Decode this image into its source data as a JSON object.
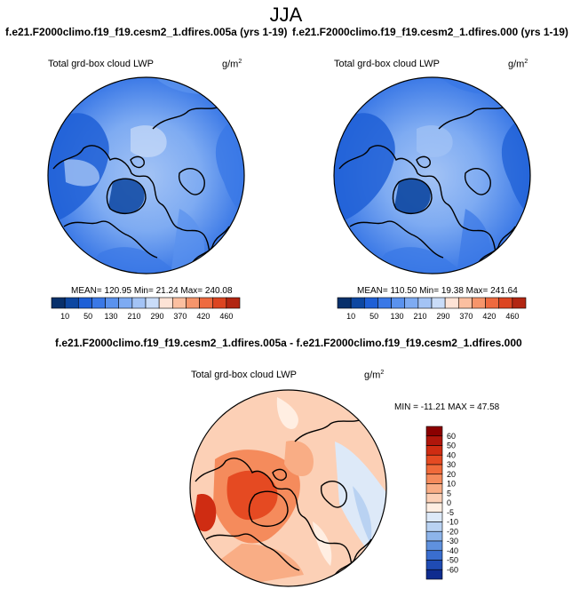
{
  "page": {
    "season_title": "JJA"
  },
  "panels": [
    {
      "title": "f.e21.F2000climo.f19_f19.cesm2_1.dfires.005a (yrs 1-19)",
      "variable": "Total grd-box cloud LWP",
      "units": "g/m",
      "units_exp": "2",
      "stats": "MEAN= 120.95  Min=  21.24  Max= 240.08"
    },
    {
      "title": "f.e21.F2000climo.f19_f19.cesm2_1.dfires.000 (yrs 1-19)",
      "variable": "Total grd-box cloud LWP",
      "units": "g/m",
      "units_exp": "2",
      "stats": "MEAN= 110.50  Min=  19.38  Max= 241.64"
    }
  ],
  "diff_panel": {
    "title": "f.e21.F2000climo.f19_f19.cesm2_1.dfires.005a - f.e21.F2000climo.f19_f19.cesm2_1.dfires.000",
    "variable": "Total grd-box cloud LWP",
    "units": "g/m",
    "units_exp": "2",
    "stats": "MIN = -11.21 MAX =  47.58"
  },
  "chart_data": [
    {
      "type": "heatmap",
      "projection": "north polar stereographic",
      "title": "f.e21.F2000climo.f19_f19.cesm2_1.dfires.005a (yrs 1-19)",
      "variable": "Total grd-box cloud LWP",
      "units": "g/m2",
      "mean": 120.95,
      "min": 21.24,
      "max": 240.08,
      "colorbar": {
        "orientation": "horizontal",
        "levels": [
          10,
          50,
          90,
          130,
          170,
          210,
          250,
          290,
          330,
          370,
          410,
          420,
          460
        ],
        "tick_labels": [
          "10",
          "50",
          "130",
          "210",
          "290",
          "370",
          "420",
          "460"
        ],
        "colors": [
          "#08306b",
          "#0d47a1",
          "#1e5fd6",
          "#3a78e6",
          "#5a92ee",
          "#7eabf2",
          "#a3c3f5",
          "#c9dcf8",
          "#fde3d6",
          "#fbbfa0",
          "#f6956b",
          "#ee6a3f",
          "#dc4521",
          "#b22612"
        ]
      }
    },
    {
      "type": "heatmap",
      "projection": "north polar stereographic",
      "title": "f.e21.F2000climo.f19_f19.cesm2_1.dfires.000 (yrs 1-19)",
      "variable": "Total grd-box cloud LWP",
      "units": "g/m2",
      "mean": 110.5,
      "min": 19.38,
      "max": 241.64,
      "colorbar": {
        "orientation": "horizontal",
        "levels": [
          10,
          50,
          90,
          130,
          170,
          210,
          250,
          290,
          330,
          370,
          410,
          420,
          460
        ],
        "tick_labels": [
          "10",
          "50",
          "130",
          "210",
          "290",
          "370",
          "420",
          "460"
        ],
        "colors": [
          "#08306b",
          "#0d47a1",
          "#1e5fd6",
          "#3a78e6",
          "#5a92ee",
          "#7eabf2",
          "#a3c3f5",
          "#c9dcf8",
          "#fde3d6",
          "#fbbfa0",
          "#f6956b",
          "#ee6a3f",
          "#dc4521",
          "#b22612"
        ]
      }
    },
    {
      "type": "heatmap",
      "projection": "north polar stereographic",
      "title": "f.e21.F2000climo.f19_f19.cesm2_1.dfires.005a - f.e21.F2000climo.f19_f19.cesm2_1.dfires.000",
      "variable": "Total grd-box cloud LWP",
      "units": "g/m2",
      "min": -11.21,
      "max": 47.58,
      "colorbar": {
        "orientation": "vertical",
        "tick_labels": [
          "60",
          "50",
          "40",
          "30",
          "20",
          "10",
          "5",
          "0",
          "-5",
          "-10",
          "-20",
          "-30",
          "-40",
          "-50",
          "-60"
        ],
        "colors": [
          "#8b0000",
          "#b0160b",
          "#cf2c12",
          "#e54a22",
          "#f06a3a",
          "#f58b5c",
          "#f9ad85",
          "#fcd0b6",
          "#ffeee2",
          "#dde9f8",
          "#b9d2f2",
          "#8db4ea",
          "#5f91de",
          "#3a6ecf",
          "#1f4bb3",
          "#0f2c8f"
        ]
      }
    }
  ]
}
